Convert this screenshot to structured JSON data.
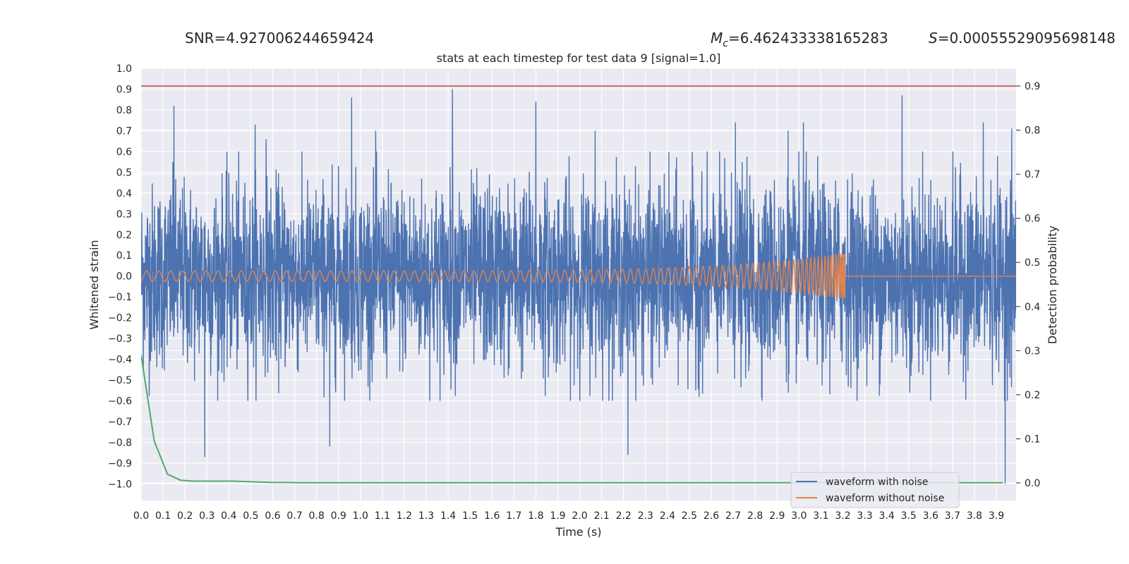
{
  "chart_data": {
    "type": "line",
    "title": "stats at each timestep for test data 9 [signal=1.0]",
    "annotations": {
      "snr": "SNR=4.927006244659424",
      "mc_symbol": "M",
      "mc_sub": "c",
      "mc_value": "=6.462433338165283",
      "s_symbol": "S",
      "s_value": "=0.00055529095698148"
    },
    "xlabel": "Time (s)",
    "ylabel": "Whitened strain",
    "y2label": "Detection probability",
    "xlim": [
      0.0,
      3.99
    ],
    "ylim": [
      -1.08,
      1.0
    ],
    "y2lim": [
      -0.04,
      0.94
    ],
    "xticks": [
      0.0,
      0.1,
      0.2,
      0.3,
      0.4,
      0.5,
      0.6,
      0.7,
      0.8,
      0.9,
      1.0,
      1.1,
      1.2,
      1.3,
      1.4,
      1.5,
      1.6,
      1.7,
      1.8,
      1.9,
      2.0,
      2.1,
      2.2,
      2.3,
      2.4,
      2.5,
      2.6,
      2.7,
      2.8,
      2.9,
      3.0,
      3.1,
      3.2,
      3.3,
      3.4,
      3.5,
      3.6,
      3.7,
      3.8,
      3.9
    ],
    "xtick_labels": [
      "0.0",
      "0.1",
      "0.2",
      "0.3",
      "0.4",
      "0.5",
      "0.6",
      "0.7",
      "0.8",
      "0.9",
      "1.0",
      "1.1",
      "1.2",
      "1.3",
      "1.4",
      "1.5",
      "1.6",
      "1.7",
      "1.8",
      "1.9",
      "2.0",
      "2.1",
      "2.2",
      "2.3",
      "2.4",
      "2.5",
      "2.6",
      "2.7",
      "2.8",
      "2.9",
      "3.0",
      "3.1",
      "3.2",
      "3.3",
      "3.4",
      "3.5",
      "3.6",
      "3.7",
      "3.8",
      "3.9"
    ],
    "yticks": [
      1.0,
      0.9,
      0.8,
      0.7,
      0.6,
      0.5,
      0.4,
      0.3,
      0.2,
      0.1,
      0.0,
      -0.1,
      -0.2,
      -0.3,
      -0.4,
      -0.5,
      -0.6,
      -0.7,
      -0.8,
      -0.9,
      -1.0
    ],
    "ytick_labels": [
      "1.0",
      "0.9",
      "0.8",
      "0.7",
      "0.6",
      "0.5",
      "0.4",
      "0.3",
      "0.2",
      "0.1",
      "0.0",
      "−0.1",
      "−0.2",
      "−0.3",
      "−0.4",
      "−0.5",
      "−0.6",
      "−0.7",
      "−0.8",
      "−0.9",
      "−1.0"
    ],
    "y2ticks": [
      0.9,
      0.8,
      0.7,
      0.6,
      0.5,
      0.4,
      0.3,
      0.2,
      0.1,
      0.0
    ],
    "y2tick_labels": [
      "0.9",
      "0.8",
      "0.7",
      "0.6",
      "0.5",
      "0.4",
      "0.3",
      "0.2",
      "0.1",
      "0.0"
    ],
    "grid": true,
    "legend": {
      "placement": "lower-right",
      "entries": [
        {
          "label": "waveform with noise",
          "color": "#4c72b0"
        },
        {
          "label": "waveform without noise",
          "color": "#dd8452"
        }
      ]
    },
    "threshold": {
      "axis": "y2",
      "value": 0.9,
      "color": "#c44e52"
    },
    "series": [
      {
        "id": "noise",
        "axis": "y",
        "color": "#4c72b0",
        "kind": "random-noise",
        "sample_count": 4000,
        "x_range": [
          0.0,
          3.99
        ],
        "peaks": [
          [
            0.15,
            0.82
          ],
          [
            0.29,
            -0.87
          ],
          [
            0.52,
            0.73
          ],
          [
            0.57,
            0.66
          ],
          [
            0.86,
            -0.82
          ],
          [
            0.96,
            0.86
          ],
          [
            1.07,
            0.7
          ],
          [
            1.42,
            0.9
          ],
          [
            1.8,
            0.84
          ],
          [
            2.07,
            0.7
          ],
          [
            2.22,
            -0.86
          ],
          [
            2.71,
            0.74
          ],
          [
            2.95,
            0.7
          ],
          [
            3.02,
            0.74
          ],
          [
            3.47,
            0.87
          ],
          [
            3.94,
            -1.0
          ],
          [
            3.97,
            0.71
          ],
          [
            3.84,
            0.74
          ]
        ]
      },
      {
        "id": "signal",
        "axis": "y",
        "color": "#dd8452",
        "kind": "chirp",
        "x_range": [
          0.0,
          3.99
        ],
        "merger_time": 3.21,
        "start_amplitude": 0.025,
        "end_amplitude": 0.11
      },
      {
        "id": "probability",
        "axis": "y2",
        "color": "#55a868",
        "x": [
          0.0,
          0.06,
          0.12,
          0.18,
          0.24,
          0.3,
          0.36,
          0.42,
          0.48,
          0.54,
          0.6,
          0.66,
          0.72,
          0.78,
          3.0,
          3.5,
          3.93
        ],
        "y": [
          0.29,
          0.095,
          0.02,
          0.006,
          0.004,
          0.004,
          0.004,
          0.004,
          0.003,
          0.002,
          0.001,
          0.001,
          0.0005,
          0.0005,
          0.0005,
          0.0005,
          0.0005
        ]
      }
    ]
  }
}
